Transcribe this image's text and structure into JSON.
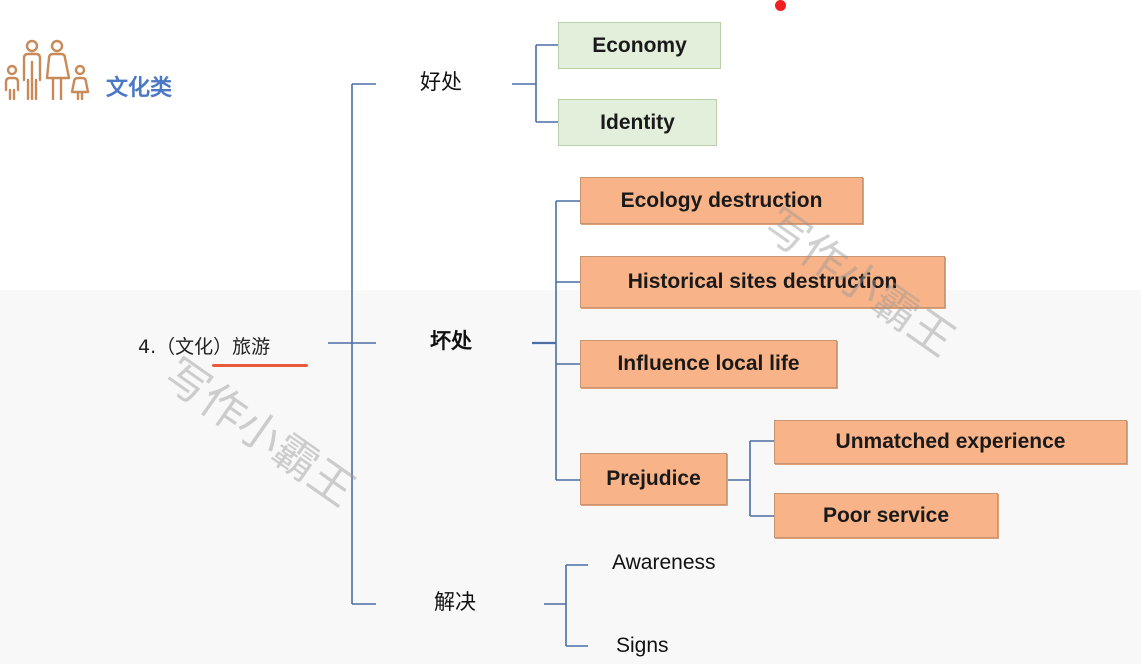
{
  "header": {
    "icon": "family-icon",
    "title": "文化类"
  },
  "root": {
    "label": "4.（文化）旅游"
  },
  "watermark": "写作小霸王",
  "branches": {
    "benefits": {
      "label": "好处",
      "items": [
        "Economy",
        "Identity"
      ]
    },
    "harms": {
      "label": "坏处",
      "items": [
        "Ecology  destruction",
        "Historical sites destruction",
        "Influence local life",
        "Prejudice"
      ],
      "prejudice_items": [
        "Unmatched experience",
        "Poor service"
      ]
    },
    "solutions": {
      "label": "解决",
      "items": [
        "Awareness",
        "Signs"
      ]
    }
  },
  "colors": {
    "title": "#4a78c4",
    "icon": "#c98a5a",
    "line": "#4a6ea5",
    "green": "#e2efda",
    "orange": "#f8b388",
    "underline": "#e85a3a"
  }
}
